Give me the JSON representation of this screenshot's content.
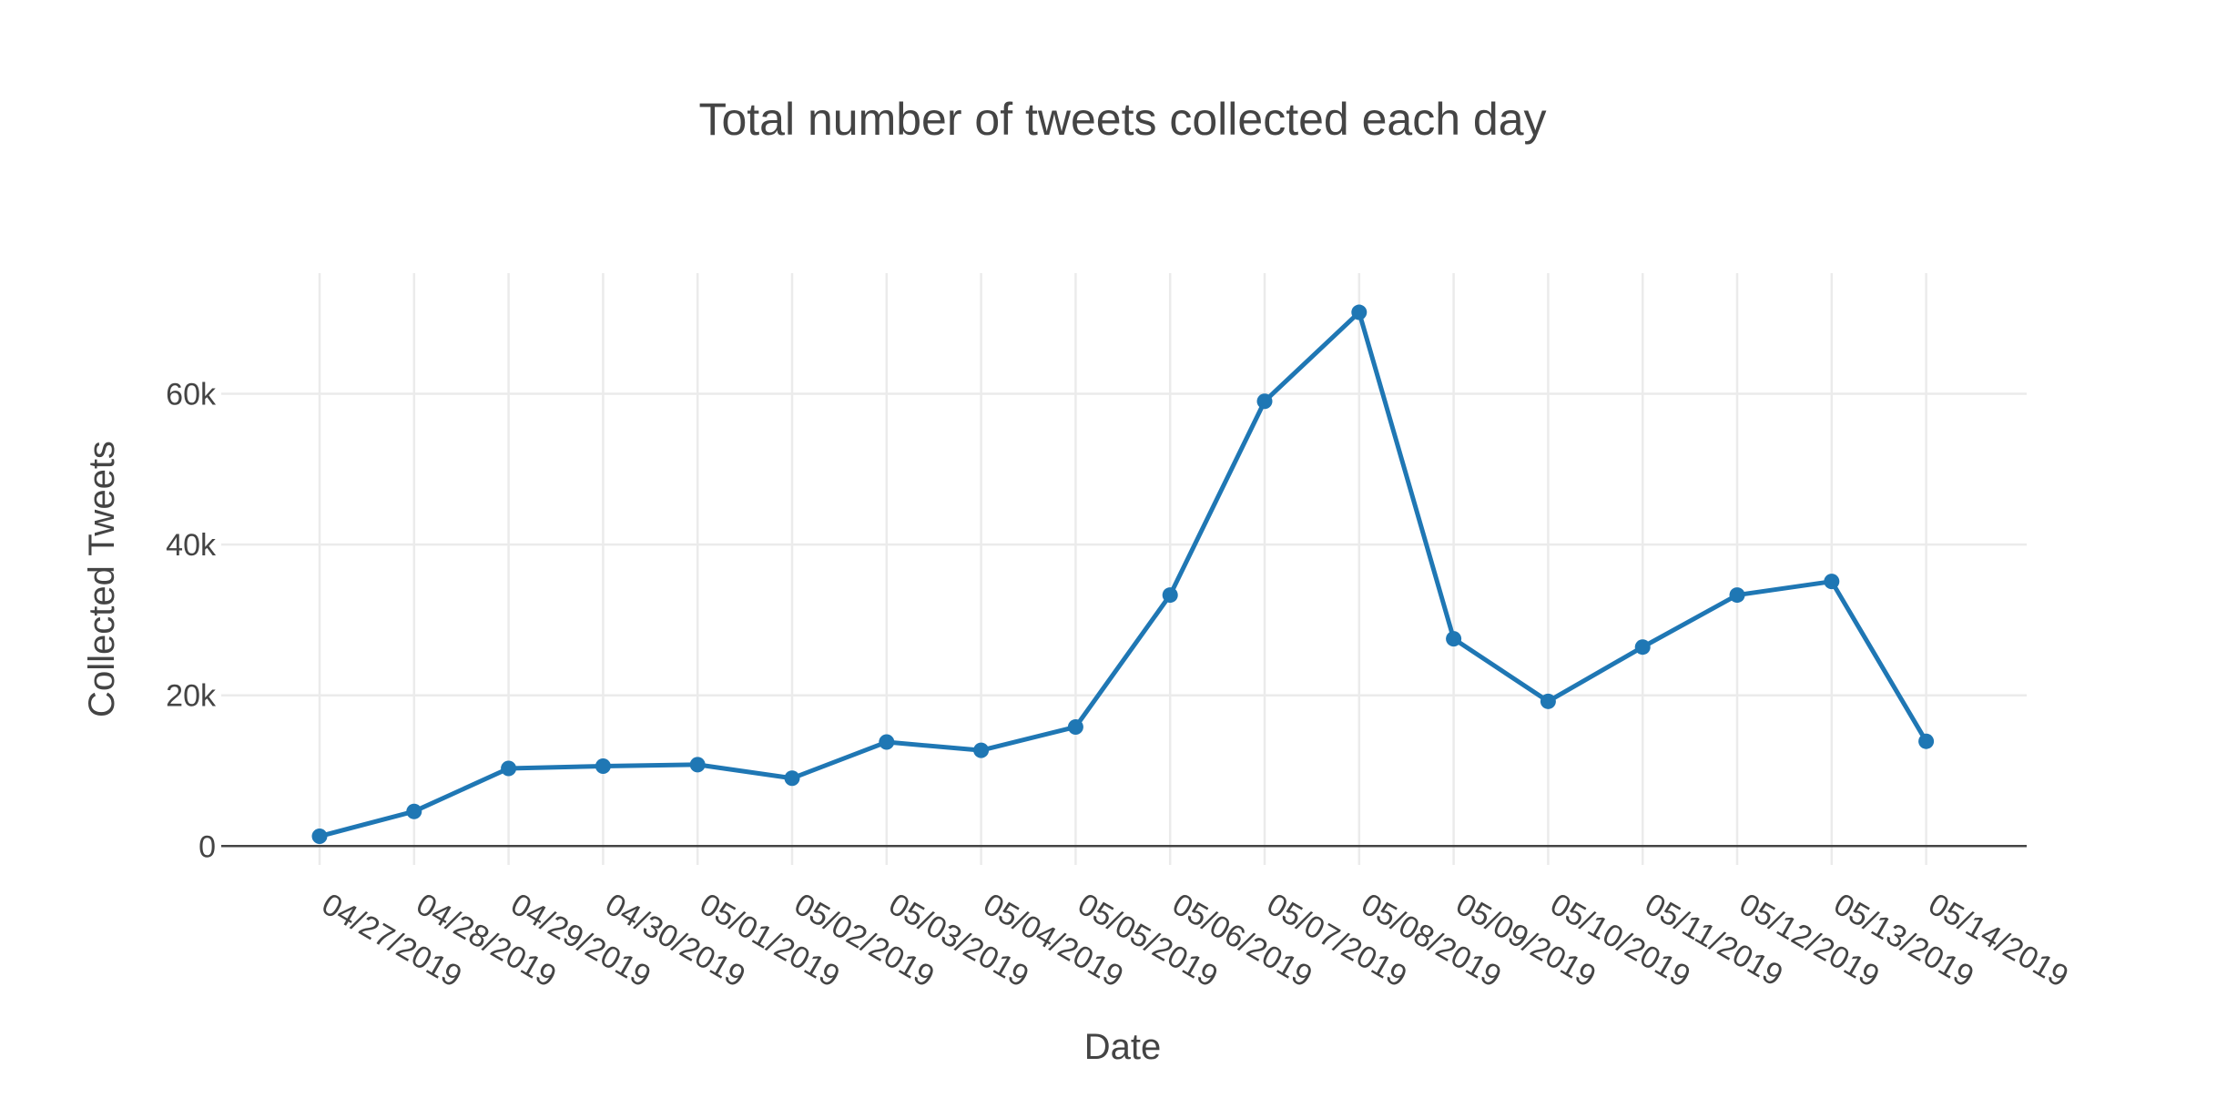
{
  "chart_data": {
    "type": "line",
    "title": "Total number of tweets collected each day",
    "xlabel": "Date",
    "ylabel": "Collected Tweets",
    "x": [
      "04/27/2019",
      "04/28/2019",
      "04/29/2019",
      "04/30/2019",
      "05/01/2019",
      "05/02/2019",
      "05/03/2019",
      "05/04/2019",
      "05/05/2019",
      "05/06/2019",
      "05/07/2019",
      "05/08/2019",
      "05/09/2019",
      "05/10/2019",
      "05/11/2019",
      "05/12/2019",
      "05/13/2019",
      "05/14/2019"
    ],
    "series": [
      {
        "values": [
          1300,
          4600,
          10300,
          10600,
          10800,
          9000,
          13800,
          12700,
          15800,
          33300,
          59000,
          70800,
          27500,
          19200,
          26400,
          33300,
          35100,
          13900
        ],
        "color": "#1f77b4"
      }
    ],
    "yticks": [
      0,
      20000,
      40000,
      60000
    ],
    "ytick_labels": [
      "0",
      "20k",
      "40k",
      "60k"
    ],
    "ylim": [
      -2500,
      76000
    ],
    "grid": true,
    "legend": "none"
  }
}
